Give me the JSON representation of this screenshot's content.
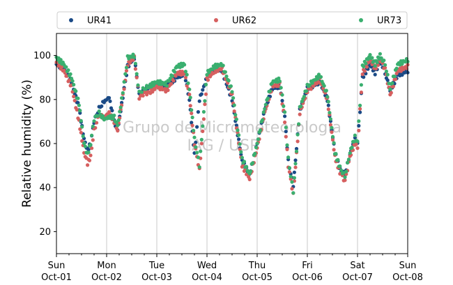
{
  "colors": {
    "UR41": "#1a4a86",
    "UR62": "#d65f5f",
    "UR73": "#3aaf6f",
    "grid": "#c8c8c8",
    "watermark": "#b9b9b9"
  },
  "watermark": {
    "line1": "Grupo de Micrometeorologia",
    "line2": "IAG / USP"
  },
  "chart_data": {
    "type": "scatter",
    "title": "",
    "ylabel": "Relative humidity (%)",
    "xlabel": "",
    "ylim": [
      10,
      110
    ],
    "xlim": [
      0,
      7
    ],
    "grid": "vertical",
    "legend_position": "top",
    "yticks": [
      20,
      40,
      60,
      80,
      100
    ],
    "x_ticks": [
      {
        "pos": 0,
        "line1": "Sun",
        "line2": "Oct-01"
      },
      {
        "pos": 1,
        "line1": "Mon",
        "line2": "Oct-02"
      },
      {
        "pos": 2,
        "line1": "Tue",
        "line2": "Oct-03"
      },
      {
        "pos": 3,
        "line1": "Wed",
        "line2": "Oct-04"
      },
      {
        "pos": 4,
        "line1": "Thu",
        "line2": "Oct-05"
      },
      {
        "pos": 5,
        "line1": "Fri",
        "line2": "Oct-06"
      },
      {
        "pos": 6,
        "line1": "Sat",
        "line2": "Oct-07"
      },
      {
        "pos": 7,
        "line1": "Sun",
        "line2": "Oct-08"
      }
    ],
    "series": [
      {
        "name": "UR41",
        "x": [
          0,
          0.15,
          0.3,
          0.45,
          0.55,
          0.62,
          0.68,
          0.75,
          0.85,
          0.95,
          1.05,
          1.15,
          1.22,
          1.3,
          1.42,
          1.55,
          1.65,
          1.75,
          1.85,
          2.0,
          2.2,
          2.4,
          2.55,
          2.65,
          2.75,
          2.85,
          3.0,
          3.15,
          3.3,
          3.5,
          3.7,
          3.85,
          4.0,
          4.15,
          4.3,
          4.45,
          4.55,
          4.62,
          4.72,
          4.85,
          5.0,
          5.1,
          5.25,
          5.4,
          5.55,
          5.65,
          5.75,
          5.85,
          5.95,
          6.0,
          6.1,
          6.25,
          6.35,
          6.45,
          6.55,
          6.65,
          6.8,
          7.0
        ],
        "y": [
          96,
          94,
          88,
          76,
          62,
          57,
          60,
          70,
          76,
          79,
          81,
          70,
          66,
          78,
          95,
          99,
          82,
          84,
          86,
          87,
          86,
          90,
          92,
          80,
          55,
          80,
          90,
          94,
          93,
          80,
          52,
          46,
          60,
          75,
          85,
          86,
          72,
          52,
          41,
          75,
          85,
          86,
          88,
          80,
          56,
          48,
          46,
          55,
          62,
          60,
          90,
          96,
          92,
          98,
          92,
          84,
          91,
          93
        ]
      },
      {
        "name": "UR62",
        "x": [
          0,
          0.15,
          0.3,
          0.45,
          0.55,
          0.62,
          0.68,
          0.75,
          0.85,
          0.95,
          1.05,
          1.15,
          1.22,
          1.3,
          1.42,
          1.55,
          1.65,
          1.75,
          1.85,
          2.0,
          2.2,
          2.4,
          2.55,
          2.65,
          2.75,
          2.85,
          3.0,
          3.15,
          3.3,
          3.5,
          3.7,
          3.85,
          4.0,
          4.15,
          4.3,
          4.45,
          4.55,
          4.62,
          4.72,
          4.85,
          5.0,
          5.1,
          5.25,
          5.4,
          5.55,
          5.65,
          5.75,
          5.85,
          5.95,
          6.0,
          6.1,
          6.25,
          6.35,
          6.45,
          6.55,
          6.65,
          6.8,
          7.0
        ],
        "y": [
          97,
          93,
          86,
          70,
          56,
          51,
          54,
          66,
          73,
          72,
          74,
          70,
          66,
          78,
          96,
          99,
          81,
          83,
          83,
          86,
          84,
          92,
          92,
          82,
          60,
          48,
          89,
          93,
          94,
          82,
          50,
          44,
          58,
          74,
          86,
          87,
          70,
          50,
          37,
          74,
          84,
          86,
          89,
          80,
          54,
          47,
          43,
          54,
          60,
          58,
          92,
          98,
          94,
          98,
          94,
          82,
          93,
          95
        ]
      },
      {
        "name": "UR73",
        "x": [
          0,
          0.15,
          0.3,
          0.45,
          0.55,
          0.62,
          0.68,
          0.75,
          0.85,
          0.95,
          1.05,
          1.15,
          1.22,
          1.3,
          1.42,
          1.55,
          1.65,
          1.75,
          1.85,
          2.0,
          2.2,
          2.4,
          2.55,
          2.65,
          2.75,
          2.85,
          3.0,
          3.15,
          3.3,
          3.5,
          3.7,
          3.85,
          4.0,
          4.15,
          4.3,
          4.45,
          4.55,
          4.62,
          4.72,
          4.85,
          5.0,
          5.1,
          5.25,
          5.4,
          5.55,
          5.65,
          5.75,
          5.85,
          5.95,
          6.0,
          6.1,
          6.25,
          6.35,
          6.45,
          6.55,
          6.65,
          6.8,
          7.0
        ],
        "y": [
          99,
          96,
          90,
          78,
          60,
          55,
          60,
          71,
          74,
          71,
          72,
          72,
          68,
          80,
          99,
          100,
          83,
          85,
          86,
          88,
          87,
          95,
          96,
          85,
          62,
          50,
          92,
          95,
          96,
          84,
          53,
          46,
          60,
          76,
          88,
          89,
          74,
          53,
          38,
          76,
          86,
          88,
          91,
          82,
          56,
          49,
          45,
          56,
          63,
          61,
          95,
          100,
          96,
          100,
          96,
          85,
          96,
          98
        ]
      }
    ]
  }
}
